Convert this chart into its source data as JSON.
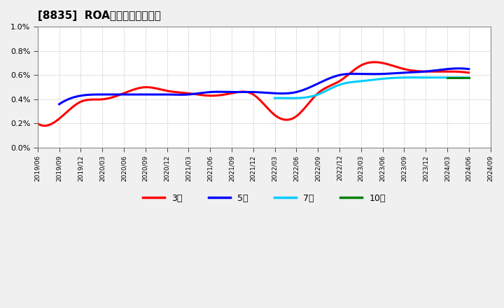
{
  "title": "[8835]  ROAの標準偏差の推移",
  "ylim": [
    0.0,
    0.01
  ],
  "yticks": [
    0.0,
    0.002,
    0.004,
    0.006,
    0.008,
    0.01
  ],
  "ytick_labels": [
    "0.0%",
    "0.2%",
    "0.4%",
    "0.6%",
    "0.8%",
    "1.0%"
  ],
  "background_color": "#f0f0f0",
  "plot_bg_color": "#ffffff",
  "grid_color": "#aaaaaa",
  "series": {
    "3年": {
      "color": "#ff0000",
      "dates": [
        "2019/06",
        "2019/09",
        "2019/12",
        "2020/03",
        "2020/06",
        "2020/09",
        "2020/12",
        "2021/03",
        "2021/06",
        "2021/09",
        "2021/12",
        "2022/03",
        "2022/06",
        "2022/09",
        "2022/12",
        "2023/03",
        "2023/06",
        "2023/09",
        "2023/12",
        "2024/03",
        "2024/06"
      ],
      "values": [
        0.002,
        0.0024,
        0.0038,
        0.004,
        0.0045,
        0.005,
        0.0047,
        0.0045,
        0.0043,
        0.0045,
        0.0044,
        0.0027,
        0.0026,
        0.0045,
        0.0055,
        0.0068,
        0.007,
        0.0065,
        0.0063,
        0.0063,
        0.0062
      ]
    },
    "5年": {
      "color": "#0000ff",
      "dates": [
        "2019/09",
        "2019/12",
        "2020/03",
        "2020/06",
        "2020/09",
        "2020/12",
        "2021/03",
        "2021/06",
        "2021/09",
        "2021/12",
        "2022/03",
        "2022/06",
        "2022/09",
        "2022/12",
        "2023/03",
        "2023/06",
        "2023/09",
        "2023/12",
        "2024/03",
        "2024/06"
      ],
      "values": [
        0.0036,
        0.0043,
        0.0044,
        0.0044,
        0.0044,
        0.0044,
        0.0044,
        0.0046,
        0.0046,
        0.0046,
        0.0045,
        0.0046,
        0.0053,
        0.006,
        0.0061,
        0.0061,
        0.0062,
        0.0063,
        0.0065,
        0.0065
      ]
    },
    "7年": {
      "color": "#00ccff",
      "dates": [
        "2022/03",
        "2022/06",
        "2022/09",
        "2022/12",
        "2023/03",
        "2023/06",
        "2023/09",
        "2023/12",
        "2024/03",
        "2024/06"
      ],
      "values": [
        0.0041,
        0.0041,
        0.0044,
        0.0052,
        0.0055,
        0.0057,
        0.0058,
        0.0058,
        0.0058,
        0.0058
      ]
    },
    "10年": {
      "color": "#008000",
      "dates": [
        "2024/03",
        "2024/06"
      ],
      "values": [
        0.0058,
        0.0058
      ]
    }
  },
  "legend_labels": [
    "3年",
    "5年",
    "7年",
    "10年"
  ],
  "legend_colors": [
    "#ff0000",
    "#0000ff",
    "#00ccff",
    "#008000"
  ],
  "tick_dates": [
    "2019/06",
    "2019/09",
    "2019/12",
    "2020/03",
    "2020/06",
    "2020/09",
    "2020/12",
    "2021/03",
    "2021/06",
    "2021/09",
    "2021/12",
    "2022/03",
    "2022/06",
    "2022/09",
    "2022/12",
    "2023/03",
    "2023/06",
    "2023/09",
    "2023/12",
    "2024/03",
    "2024/06",
    "2024/09"
  ],
  "xmin": "2019/06",
  "xmax": "2024/09"
}
